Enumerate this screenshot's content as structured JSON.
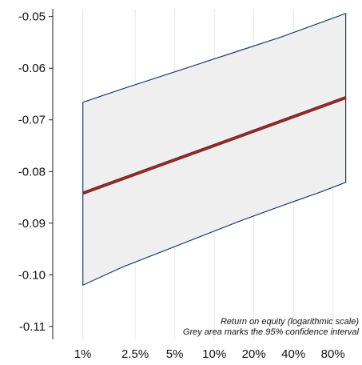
{
  "chart_data": {
    "type": "line",
    "x_scale": "log",
    "x_ticks": [
      {
        "value": 0.01,
        "label": "1%"
      },
      {
        "value": 0.025,
        "label": "2.5%"
      },
      {
        "value": 0.05,
        "label": "5%"
      },
      {
        "value": 0.1,
        "label": "10%"
      },
      {
        "value": 0.2,
        "label": "20%"
      },
      {
        "value": 0.4,
        "label": "40%"
      },
      {
        "value": 0.8,
        "label": "80%"
      }
    ],
    "y_ticks": [
      {
        "value": -0.05,
        "label": "-0.05"
      },
      {
        "value": -0.06,
        "label": "-0.06"
      },
      {
        "value": -0.07,
        "label": "-0.07"
      },
      {
        "value": -0.08,
        "label": "-0.08"
      },
      {
        "value": -0.09,
        "label": "-0.09"
      },
      {
        "value": -0.1,
        "label": "-0.10"
      },
      {
        "value": -0.11,
        "label": "-0.11"
      }
    ],
    "xlim": [
      0.0059,
      1.33
    ],
    "ylim": [
      -0.1125,
      -0.0485
    ],
    "grid": {
      "vertical": true,
      "horizontal": false
    },
    "series": [
      {
        "role": "estimate",
        "color": "#8b2b2b",
        "x": [
          0.01,
          1.0
        ],
        "y": [
          -0.0842,
          -0.0657
        ]
      }
    ],
    "band": {
      "fill": "#efefef",
      "stroke": "#1f3d6b",
      "x": [
        0.01,
        0.02,
        0.04,
        0.08,
        0.16,
        0.32,
        0.64,
        1.0
      ],
      "upper": [
        -0.0666,
        -0.064,
        -0.0615,
        -0.059,
        -0.0565,
        -0.054,
        -0.0512,
        -0.0494
      ],
      "lower": [
        -0.102,
        -0.0985,
        -0.0955,
        -0.0925,
        -0.0895,
        -0.0867,
        -0.084,
        -0.0821
      ]
    },
    "annotations": [
      "Return on equity (logarithmic scale)",
      "Grey area marks the 95% confidence interval"
    ]
  }
}
